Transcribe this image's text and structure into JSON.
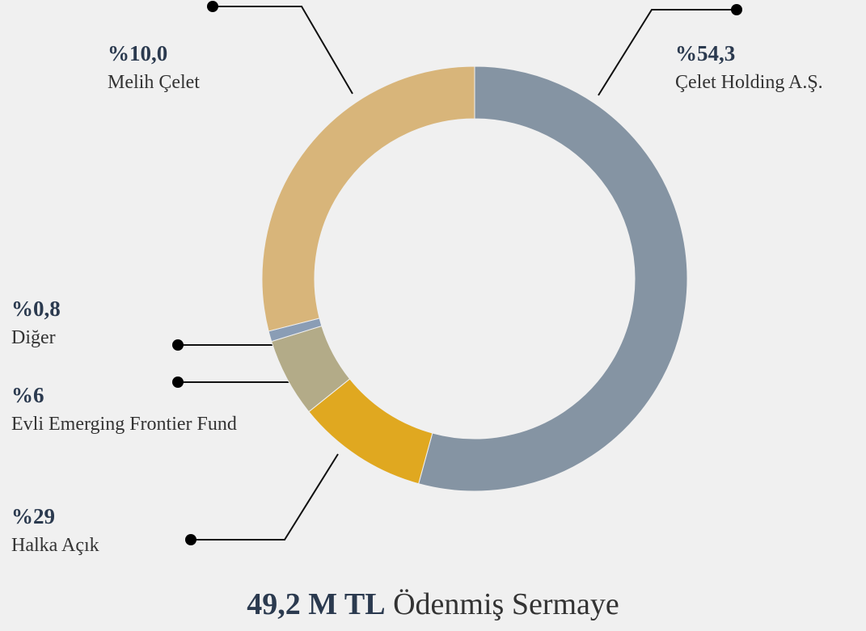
{
  "chart_data": {
    "type": "donut",
    "categories": [
      "Çelet Holding A.Ş.",
      "Melih Çelet",
      "Evli Emerging Frontier Fund",
      "Diğer",
      "Halka Açık"
    ],
    "values": [
      54.3,
      10.0,
      6,
      0.8,
      29
    ],
    "value_labels": [
      "%54,3",
      "%10,0",
      "%6",
      "%0,8",
      "%29"
    ],
    "colors": [
      "#8594a3",
      "#e0a820",
      "#b3ab88",
      "#8a9db5",
      "#d8b57a"
    ],
    "total_value": "49,2 M TL",
    "total_label": "Ödenmiş Sermaye"
  }
}
